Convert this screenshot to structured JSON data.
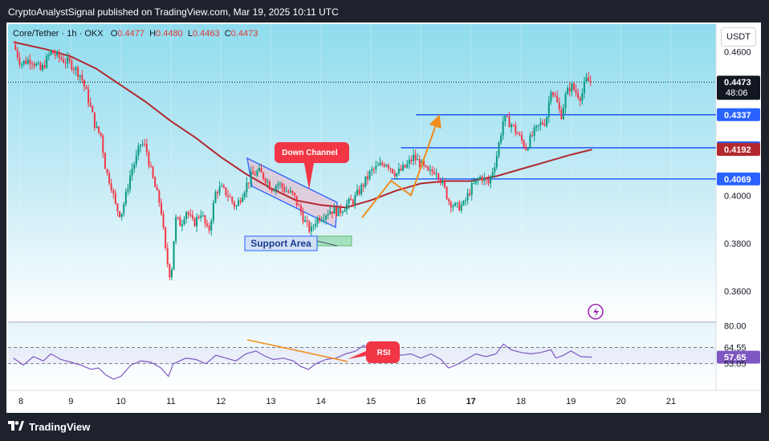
{
  "header": {
    "publisher_line": "CryptoAnalystSignal published on TradingView.com, Mar 19, 2025 10:11 UTC"
  },
  "symbol": {
    "name": "Core/Tether",
    "interval": "1h",
    "exchange": "OKX",
    "open_label": "O",
    "open": "0.4477",
    "high_label": "H",
    "high": "0.4480",
    "low_label": "L",
    "low": "0.4463",
    "close_label": "C",
    "close": "0.4473"
  },
  "currency_button": "USDT",
  "footer": {
    "brand": "TradingView"
  },
  "chart_data": {
    "type": "candlestick",
    "price_axis": {
      "ticks": [
        "0.4600",
        "0.4000",
        "0.3800",
        "0.3600"
      ],
      "ylim": [
        0.3475,
        0.4715
      ]
    },
    "time_axis": {
      "ticks": [
        "8",
        "9",
        "10",
        "11",
        "12",
        "13",
        "14",
        "15",
        "16",
        "17",
        "18",
        "19",
        "20",
        "21"
      ]
    },
    "price_tags": [
      {
        "value": "0.4473",
        "sub": "48:06",
        "style": "last",
        "color": "#131722"
      },
      {
        "value": "0.4337",
        "color": "#2962ff"
      },
      {
        "value": "0.4199",
        "color": "#2962ff"
      },
      {
        "value": "0.4192",
        "color": "#b2282e"
      },
      {
        "value": "0.4069",
        "color": "#2962ff"
      }
    ],
    "horizontal_levels": [
      {
        "value": 0.4337,
        "from_day": 15.9,
        "color": "#2962ff"
      },
      {
        "value": 0.4199,
        "from_day": 15.6,
        "color": "#2962ff"
      },
      {
        "value": 0.4069,
        "from_day": 15.4,
        "color": "#2962ff"
      }
    ],
    "close_path": [
      [
        7.85,
        0.463
      ],
      [
        8.0,
        0.455
      ],
      [
        8.2,
        0.457
      ],
      [
        8.4,
        0.452
      ],
      [
        8.6,
        0.46
      ],
      [
        8.8,
        0.457
      ],
      [
        9.0,
        0.455
      ],
      [
        9.2,
        0.45
      ],
      [
        9.35,
        0.44
      ],
      [
        9.5,
        0.428
      ],
      [
        9.6,
        0.425
      ],
      [
        9.7,
        0.41
      ],
      [
        9.8,
        0.405
      ],
      [
        9.9,
        0.395
      ],
      [
        10.0,
        0.392
      ],
      [
        10.1,
        0.4
      ],
      [
        10.2,
        0.41
      ],
      [
        10.3,
        0.415
      ],
      [
        10.4,
        0.422
      ],
      [
        10.5,
        0.42
      ],
      [
        10.6,
        0.41
      ],
      [
        10.7,
        0.402
      ],
      [
        10.8,
        0.395
      ],
      [
        10.9,
        0.375
      ],
      [
        11.0,
        0.365
      ],
      [
        11.05,
        0.38
      ],
      [
        11.1,
        0.39
      ],
      [
        11.2,
        0.388
      ],
      [
        11.3,
        0.394
      ],
      [
        11.45,
        0.388
      ],
      [
        11.6,
        0.393
      ],
      [
        11.75,
        0.384
      ],
      [
        11.9,
        0.402
      ],
      [
        12.0,
        0.403
      ],
      [
        12.15,
        0.4
      ],
      [
        12.3,
        0.395
      ],
      [
        12.45,
        0.402
      ],
      [
        12.6,
        0.408
      ],
      [
        12.75,
        0.41
      ],
      [
        12.9,
        0.407
      ],
      [
        13.0,
        0.403
      ],
      [
        13.15,
        0.405
      ],
      [
        13.3,
        0.402
      ],
      [
        13.45,
        0.4
      ],
      [
        13.6,
        0.393
      ],
      [
        13.7,
        0.388
      ],
      [
        13.8,
        0.385
      ],
      [
        13.9,
        0.39
      ],
      [
        14.05,
        0.392
      ],
      [
        14.2,
        0.394
      ],
      [
        14.35,
        0.393
      ],
      [
        14.5,
        0.396
      ],
      [
        14.65,
        0.398
      ],
      [
        14.8,
        0.403
      ],
      [
        15.0,
        0.41
      ],
      [
        15.15,
        0.412
      ],
      [
        15.3,
        0.414
      ],
      [
        15.5,
        0.409
      ],
      [
        15.7,
        0.412
      ],
      [
        15.85,
        0.416
      ],
      [
        16.0,
        0.413
      ],
      [
        16.15,
        0.409
      ],
      [
        16.3,
        0.411
      ],
      [
        16.45,
        0.404
      ],
      [
        16.55,
        0.398
      ],
      [
        16.7,
        0.395
      ],
      [
        16.85,
        0.396
      ],
      [
        17.0,
        0.403
      ],
      [
        17.2,
        0.408
      ],
      [
        17.35,
        0.405
      ],
      [
        17.5,
        0.415
      ],
      [
        17.65,
        0.432
      ],
      [
        17.8,
        0.43
      ],
      [
        17.95,
        0.425
      ],
      [
        18.1,
        0.42
      ],
      [
        18.25,
        0.426
      ],
      [
        18.4,
        0.43
      ],
      [
        18.5,
        0.431
      ],
      [
        18.6,
        0.445
      ],
      [
        18.7,
        0.44
      ],
      [
        18.8,
        0.433
      ],
      [
        18.9,
        0.442
      ],
      [
        19.0,
        0.446
      ],
      [
        19.1,
        0.443
      ],
      [
        19.2,
        0.441
      ],
      [
        19.3,
        0.448
      ],
      [
        19.42,
        0.4473
      ]
    ],
    "moving_average": [
      [
        7.85,
        0.464
      ],
      [
        8.5,
        0.461
      ],
      [
        9.0,
        0.458
      ],
      [
        9.5,
        0.453
      ],
      [
        10.0,
        0.446
      ],
      [
        10.5,
        0.439
      ],
      [
        11.0,
        0.431
      ],
      [
        11.5,
        0.424
      ],
      [
        12.0,
        0.416
      ],
      [
        12.5,
        0.409
      ],
      [
        13.0,
        0.403
      ],
      [
        13.5,
        0.398
      ],
      [
        14.0,
        0.396
      ],
      [
        14.5,
        0.395
      ],
      [
        15.0,
        0.398
      ],
      [
        15.5,
        0.402
      ],
      [
        16.0,
        0.405
      ],
      [
        16.5,
        0.406
      ],
      [
        17.0,
        0.406
      ],
      [
        17.5,
        0.408
      ],
      [
        18.0,
        0.411
      ],
      [
        18.5,
        0.414
      ],
      [
        19.0,
        0.417
      ],
      [
        19.42,
        0.4192
      ]
    ],
    "rsi": {
      "axis_ticks": [
        "80.00",
        "64.55",
        "53.05"
      ],
      "value_tag": "57.65",
      "upper_band": 64.55,
      "lower_band": 53.05,
      "ylim": [
        34,
        82
      ],
      "series": [
        [
          7.85,
          57
        ],
        [
          8.05,
          52
        ],
        [
          8.25,
          58
        ],
        [
          8.45,
          55
        ],
        [
          8.6,
          60
        ],
        [
          8.8,
          56
        ],
        [
          9.0,
          54
        ],
        [
          9.2,
          52
        ],
        [
          9.4,
          49
        ],
        [
          9.55,
          50
        ],
        [
          9.7,
          45
        ],
        [
          9.85,
          42
        ],
        [
          10.0,
          44
        ],
        [
          10.2,
          52
        ],
        [
          10.4,
          55
        ],
        [
          10.6,
          54
        ],
        [
          10.8,
          50
        ],
        [
          10.95,
          44
        ],
        [
          11.05,
          53
        ],
        [
          11.3,
          57
        ],
        [
          11.5,
          56
        ],
        [
          11.7,
          53
        ],
        [
          11.9,
          59
        ],
        [
          12.1,
          57
        ],
        [
          12.3,
          55
        ],
        [
          12.5,
          60
        ],
        [
          12.7,
          62
        ],
        [
          12.9,
          58
        ],
        [
          13.05,
          56
        ],
        [
          13.25,
          57
        ],
        [
          13.45,
          55
        ],
        [
          13.6,
          51
        ],
        [
          13.75,
          49
        ],
        [
          13.9,
          53
        ],
        [
          14.1,
          56
        ],
        [
          14.3,
          57
        ],
        [
          14.5,
          60
        ],
        [
          14.7,
          62
        ],
        [
          14.85,
          66
        ],
        [
          15.0,
          63
        ],
        [
          15.2,
          62
        ],
        [
          15.4,
          64
        ],
        [
          15.6,
          59
        ],
        [
          15.8,
          60
        ],
        [
          16.0,
          57
        ],
        [
          16.2,
          60
        ],
        [
          16.4,
          56
        ],
        [
          16.55,
          50
        ],
        [
          16.7,
          52
        ],
        [
          16.9,
          56
        ],
        [
          17.1,
          60
        ],
        [
          17.3,
          58
        ],
        [
          17.5,
          60
        ],
        [
          17.65,
          67
        ],
        [
          17.8,
          63
        ],
        [
          18.0,
          61
        ],
        [
          18.2,
          60
        ],
        [
          18.4,
          61
        ],
        [
          18.6,
          63
        ],
        [
          18.7,
          57
        ],
        [
          18.85,
          59
        ],
        [
          19.0,
          62
        ],
        [
          19.2,
          58
        ],
        [
          19.42,
          57.65
        ]
      ]
    },
    "annotations": {
      "down_channel_label": "Down Channel",
      "support_area_label": "Support Area",
      "rsi_label": "RSI"
    }
  }
}
